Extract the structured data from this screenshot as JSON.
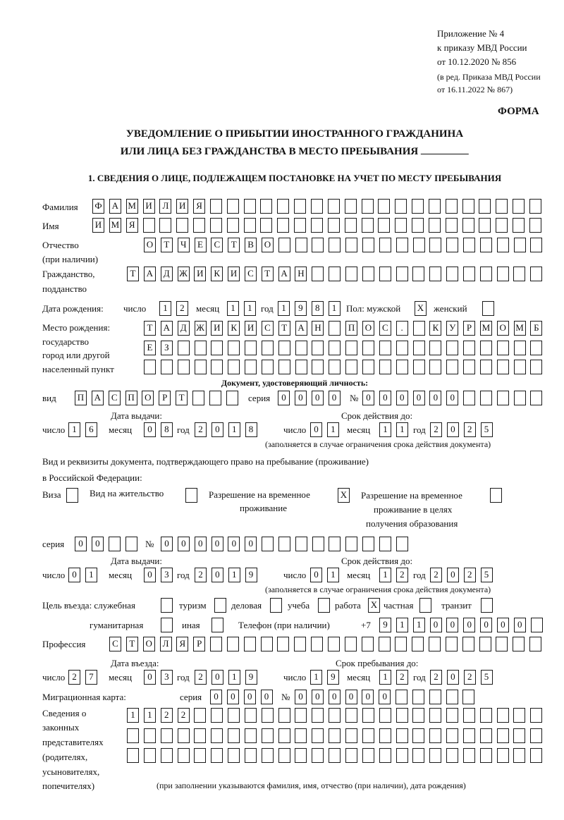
{
  "header": {
    "appendix": "Приложение № 4",
    "order": "к приказу МВД России",
    "order_date": "от 10.12.2020 № 856",
    "edition_1": "(в ред. Приказа МВД России",
    "edition_2": "от 16.11.2022 № 867)",
    "form_label": "ФОРМА"
  },
  "title": {
    "line1": "УВЕДОМЛЕНИЕ О ПРИБЫТИИ ИНОСТРАННОГО ГРАЖДАНИНА",
    "line2": "ИЛИ ЛИЦА БЕЗ ГРАЖДАНСТВА В МЕСТО ПРЕБЫВАНИЯ"
  },
  "labels": {
    "day": "число",
    "month": "месяц",
    "year": "год",
    "series": "серия",
    "number": "№",
    "issue_date": "Дата выдачи:",
    "valid_until": "Срок действия до:",
    "validity_note": "(заполняется в случае ограничения срока действия документа)"
  },
  "section1": {
    "heading": "1. СВЕДЕНИЯ О ЛИЦЕ, ПОДЛЕЖАЩЕМ ПОСТАНОВКЕ НА УЧЕТ ПО МЕСТУ ПРЕБЫВАНИЯ",
    "surname": {
      "label": "Фамилия",
      "value": "ФАМИЛИЯ"
    },
    "name": {
      "label": "Имя",
      "value": "ИМЯ"
    },
    "patronymic": {
      "label": "Отчество",
      "label2": "(при наличии)",
      "value": "ОТЧЕСТВО"
    },
    "citizenship": {
      "label": "Гражданство,",
      "label2": "подданство",
      "value": "ТАДЖИКИСТАН"
    },
    "birth_date": {
      "label": "Дата рождения:",
      "day": "12",
      "month": "11",
      "year": "1981"
    },
    "sex": {
      "male_label": "Пол: мужской",
      "female_label": "женский",
      "male": "X",
      "female": ""
    },
    "birthplace": {
      "label1": "Место рождения:",
      "label2": "государство",
      "label3": "город или другой",
      "label4": "населенный пункт",
      "row1": "ТАДЖИКИСТАН ПОС. КУРМОМБ",
      "row2": "ЕЗ",
      "row3": ""
    },
    "identity_doc": {
      "heading": "Документ, удостоверяющий личность:",
      "kind_label": "вид",
      "kind": "ПАСПОРТ",
      "series": "0000",
      "number": "000000",
      "issue": {
        "day": "16",
        "month": "08",
        "year": "2018"
      },
      "valid": {
        "day": "01",
        "month": "11",
        "year": "2025"
      }
    },
    "stay_doc": {
      "heading1": "Вид и реквизиты документа, подтверждающего право на пребывание (проживание)",
      "heading2": "в Российской Федерации:",
      "visa": {
        "label": "Виза",
        "value": ""
      },
      "residence": {
        "label": "Вид на жительство",
        "value": ""
      },
      "temp_residence": {
        "label1": "Разрешение на временное",
        "label2": "проживание",
        "value": "X"
      },
      "temp_residence_edu": {
        "label1": "Разрешение на временное",
        "label2": "проживание в целях",
        "label3": "получения образования",
        "value": ""
      },
      "series": "00",
      "number": "000000",
      "issue": {
        "day": "01",
        "month": "03",
        "year": "2019"
      },
      "valid": {
        "day": "01",
        "month": "12",
        "year": "2025"
      }
    },
    "purpose": {
      "label": "Цель въезда: служебная",
      "official": "",
      "tourism_label": "туризм",
      "tourism": "",
      "business_label": "деловая",
      "business": "",
      "study_label": "учеба",
      "study": "",
      "work_label": "работа",
      "work": "X",
      "private_label": "частная",
      "private": "",
      "transit_label": "транзит",
      "transit": "",
      "humanitarian_label": "гуманитарная",
      "humanitarian": "",
      "other_label": "иная",
      "other": ""
    },
    "phone": {
      "label": "Телефон (при наличии)",
      "prefix": "+7",
      "value": "911000000"
    },
    "profession": {
      "label": "Профессия",
      "value": "СТОЛЯР"
    },
    "entry": {
      "label": "Дата въезда:",
      "day": "27",
      "month": "03",
      "year": "2019"
    },
    "stay_until": {
      "label": "Срок пребывания до:",
      "day": "19",
      "month": "12",
      "year": "2025"
    },
    "migration_card": {
      "label": "Миграционная карта:",
      "series": "0000",
      "number": "000000"
    },
    "legal_reps": {
      "label1": "Сведения о",
      "label2": "законных",
      "label3": "представителях",
      "label4": "(родителях,",
      "label5": "усыновителях,",
      "label6": "попечителях)",
      "row1": "1122",
      "row2": "",
      "row3": "",
      "note": "(при заполнении указываются фамилия, имя, отчество (при наличии), дата рождения)"
    }
  }
}
